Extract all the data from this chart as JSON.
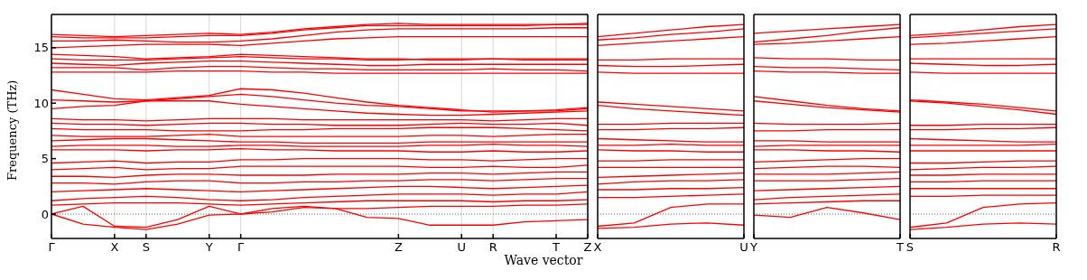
{
  "chart_data": [
    {
      "type": "line",
      "ylabel": "Frequency (THz)",
      "xlabel": "Wave vector",
      "categories": [
        "Γ",
        null,
        "X",
        "S",
        null,
        "Y",
        "Γ",
        null,
        null,
        null,
        null,
        "Z",
        null,
        "U",
        "R",
        null,
        "T",
        "Z"
      ],
      "ylim": [
        -2.2,
        18
      ],
      "yticks": [
        0,
        5,
        10,
        15
      ],
      "grid": "x",
      "ref_lines": [
        {
          "axis": "y",
          "value": 0,
          "color": "#000000",
          "line_style": "dotted"
        }
      ],
      "series": [
        {
          "color": "#ff0000",
          "values": [
            0,
            -0.9,
            -1.2,
            -1.4,
            -0.9,
            -0.1,
            0,
            0.5,
            0.7,
            0.5,
            -0.3,
            -0.4,
            -1.0,
            -1.0,
            -1.0,
            -0.7,
            -0.6,
            -0.5
          ]
        },
        {
          "color": "#ff0000",
          "values": [
            0,
            0.7,
            -1.1,
            -1.2,
            -0.5,
            0.7,
            0,
            0.2,
            0.6,
            0.5,
            0.5,
            0.6,
            0.7,
            0.7,
            0.7,
            0.8,
            0.8,
            0.9
          ]
        },
        {
          "color": "#ff0000",
          "values": [
            0.8,
            0.9,
            1.0,
            1.0,
            1.0,
            0.9,
            0.8,
            0.9,
            1.0,
            1.1,
            1.2,
            1.2,
            1.2,
            1.2,
            1.1,
            1.2,
            1.2,
            1.3
          ]
        },
        {
          "color": "#ff0000",
          "values": [
            1.2,
            1.4,
            1.5,
            1.6,
            1.5,
            1.3,
            1.2,
            1.3,
            1.5,
            1.6,
            1.7,
            1.8,
            1.8,
            1.8,
            1.7,
            1.8,
            1.8,
            2.0
          ]
        },
        {
          "color": "#ff0000",
          "values": [
            2.0,
            2.1,
            2.2,
            2.3,
            2.2,
            2.1,
            2.0,
            2.1,
            2.2,
            2.3,
            2.4,
            2.5,
            2.5,
            2.4,
            2.3,
            2.4,
            2.5,
            2.6
          ]
        },
        {
          "color": "#ff0000",
          "values": [
            2.8,
            2.8,
            2.7,
            2.9,
            3.0,
            3.0,
            2.8,
            2.8,
            2.9,
            2.9,
            3.0,
            3.0,
            3.1,
            3.1,
            3.0,
            3.1,
            3.2,
            3.2
          ]
        },
        {
          "color": "#ff0000",
          "values": [
            3.4,
            3.4,
            3.3,
            3.5,
            3.6,
            3.6,
            3.5,
            3.5,
            3.5,
            3.6,
            3.6,
            3.6,
            3.7,
            3.7,
            3.6,
            3.7,
            3.8,
            3.8
          ]
        },
        {
          "color": "#ff0000",
          "values": [
            4.0,
            4.1,
            4.2,
            4.0,
            4.1,
            4.1,
            4.3,
            4.3,
            4.3,
            4.3,
            4.3,
            4.3,
            4.2,
            4.2,
            4.3,
            4.2,
            4.2,
            4.4
          ]
        },
        {
          "color": "#ff0000",
          "values": [
            4.6,
            4.7,
            4.8,
            4.6,
            4.7,
            4.7,
            4.9,
            4.9,
            5.0,
            5.0,
            5.0,
            5.0,
            4.9,
            4.9,
            4.8,
            4.9,
            5.0,
            5.0
          ]
        },
        {
          "color": "#ff0000",
          "values": [
            5.8,
            5.8,
            5.8,
            5.7,
            5.8,
            5.8,
            5.9,
            5.8,
            5.8,
            5.7,
            5.7,
            5.7,
            5.6,
            5.6,
            5.7,
            5.6,
            5.6,
            5.7
          ]
        },
        {
          "color": "#ff0000",
          "values": [
            6.1,
            6.2,
            6.2,
            6.2,
            6.1,
            6.1,
            6.2,
            6.2,
            6.1,
            6.1,
            6.1,
            6.1,
            6.2,
            6.2,
            6.3,
            6.2,
            6.2,
            6.1
          ]
        },
        {
          "color": "#ff0000",
          "values": [
            6.6,
            6.7,
            6.8,
            6.8,
            6.7,
            6.6,
            6.5,
            6.5,
            6.4,
            6.4,
            6.4,
            6.4,
            6.5,
            6.5,
            6.5,
            6.5,
            6.5,
            6.5
          ]
        },
        {
          "color": "#ff0000",
          "values": [
            7.1,
            7.0,
            7.0,
            7.0,
            7.1,
            7.2,
            7.0,
            7.0,
            7.0,
            7.0,
            7.0,
            7.0,
            7.1,
            7.1,
            7.0,
            7.1,
            7.2,
            7.2
          ]
        },
        {
          "color": "#ff0000",
          "values": [
            7.7,
            7.6,
            7.6,
            7.6,
            7.5,
            7.5,
            7.5,
            7.6,
            7.6,
            7.7,
            7.7,
            7.7,
            7.8,
            7.8,
            7.8,
            7.7,
            7.6,
            7.5
          ]
        },
        {
          "color": "#ff0000",
          "values": [
            8.2,
            8.1,
            8.1,
            8.0,
            8.1,
            8.2,
            8.2,
            8.1,
            8.1,
            8.0,
            8.0,
            8.0,
            8.1,
            8.2,
            8.1,
            8.1,
            8.2,
            8.0
          ]
        },
        {
          "color": "#ff0000",
          "values": [
            8.6,
            8.5,
            8.5,
            8.4,
            8.5,
            8.6,
            8.6,
            8.6,
            8.5,
            8.5,
            8.5,
            8.5,
            8.5,
            8.5,
            8.4,
            8.5,
            8.6,
            8.6
          ]
        },
        {
          "color": "#ff0000",
          "values": [
            9.5,
            9.7,
            9.8,
            10.2,
            10.2,
            10.2,
            9.9,
            9.7,
            9.5,
            9.3,
            9.1,
            9.0,
            8.9,
            8.9,
            9.0,
            9.1,
            9.2,
            9.3
          ]
        },
        {
          "color": "#ff0000",
          "values": [
            10.3,
            10.2,
            10.1,
            10.2,
            10.4,
            10.6,
            10.8,
            10.6,
            10.3,
            10.0,
            9.8,
            9.7,
            9.5,
            9.3,
            9.3,
            9.3,
            9.3,
            9.5
          ]
        },
        {
          "color": "#ff0000",
          "values": [
            11.2,
            10.8,
            10.4,
            10.3,
            10.5,
            10.7,
            11.3,
            11.2,
            10.9,
            10.5,
            10.1,
            9.8,
            9.6,
            9.4,
            9.2,
            9.3,
            9.4,
            9.6
          ]
        },
        {
          "color": "#ff0000",
          "values": [
            12.8,
            12.8,
            12.8,
            12.8,
            12.9,
            12.9,
            12.9,
            12.8,
            12.8,
            12.7,
            12.7,
            12.7,
            12.7,
            12.7,
            12.7,
            12.7,
            12.7,
            12.7
          ]
        },
        {
          "color": "#ff0000",
          "values": [
            13.2,
            13.2,
            13.2,
            13.0,
            13.2,
            13.3,
            13.3,
            13.2,
            13.1,
            13.1,
            13.0,
            13.0,
            13.0,
            13.0,
            13.1,
            13.0,
            13.0,
            12.9
          ]
        },
        {
          "color": "#ff0000",
          "values": [
            13.6,
            13.5,
            13.4,
            13.6,
            13.7,
            13.8,
            13.8,
            13.7,
            13.6,
            13.5,
            13.4,
            13.4,
            13.5,
            13.5,
            13.5,
            13.5,
            13.5,
            13.5
          ]
        },
        {
          "color": "#ff0000",
          "values": [
            14.0,
            13.9,
            13.9,
            13.9,
            14.0,
            14.1,
            14.2,
            14.1,
            14.0,
            14.0,
            13.9,
            13.9,
            14.0,
            14.0,
            14.0,
            13.9,
            13.9,
            13.9
          ]
        },
        {
          "color": "#ff0000",
          "values": [
            14.4,
            14.3,
            14.2,
            14.0,
            14.1,
            14.2,
            14.4,
            14.3,
            14.2,
            14.1,
            14.0,
            14.0,
            13.9,
            13.9,
            14.0,
            14.0,
            14.0,
            14.0
          ]
        },
        {
          "color": "#ff0000",
          "values": [
            15.0,
            15.1,
            15.2,
            15.3,
            15.3,
            15.3,
            15.2,
            15.4,
            15.6,
            15.8,
            15.9,
            16.0,
            16.0,
            16.0,
            16.0,
            16.0,
            16.0,
            16.0
          ]
        },
        {
          "color": "#ff0000",
          "values": [
            15.6,
            15.6,
            15.7,
            15.6,
            15.5,
            15.5,
            15.6,
            15.8,
            16.1,
            16.4,
            16.6,
            16.7,
            16.7,
            16.7,
            16.7,
            16.7,
            16.8,
            16.8
          ]
        },
        {
          "color": "#ff0000",
          "values": [
            16.0,
            15.9,
            15.9,
            15.9,
            16.0,
            16.1,
            16.1,
            16.3,
            16.6,
            16.8,
            17.0,
            17.0,
            17.0,
            17.0,
            17.0,
            17.0,
            17.1,
            17.1
          ]
        },
        {
          "color": "#ff0000",
          "values": [
            16.2,
            16.1,
            16.0,
            16.1,
            16.2,
            16.3,
            16.2,
            16.4,
            16.7,
            16.9,
            17.1,
            17.2,
            17.1,
            17.1,
            17.1,
            17.1,
            17.1,
            17.2
          ]
        }
      ]
    },
    {
      "type": "line",
      "categories": [
        "X",
        null,
        null,
        null,
        "U"
      ],
      "ylim": [
        -2.2,
        18
      ],
      "yticks": [
        0,
        5,
        10,
        15
      ],
      "tick_labels": "x",
      "ref_lines": [
        {
          "axis": "y",
          "value": 0,
          "color": "#000000",
          "line_style": "dotted"
        }
      ],
      "series": [
        {
          "color": "#ff0000",
          "values": [
            -1.3,
            -1.2,
            -0.9,
            -0.8,
            -1.0
          ]
        },
        {
          "color": "#ff0000",
          "values": [
            -1.1,
            -0.8,
            0.6,
            0.9,
            0.9
          ]
        },
        {
          "color": "#ff0000",
          "values": [
            1.5,
            1.5,
            1.6,
            1.7,
            1.8
          ]
        },
        {
          "color": "#ff0000",
          "values": [
            2.2,
            2.2,
            2.3,
            2.3,
            2.4
          ]
        },
        {
          "color": "#ff0000",
          "values": [
            2.7,
            2.9,
            3.0,
            3.0,
            3.1
          ]
        },
        {
          "color": "#ff0000",
          "values": [
            3.3,
            3.4,
            3.5,
            3.6,
            3.7
          ]
        },
        {
          "color": "#ff0000",
          "values": [
            4.2,
            4.2,
            4.2,
            4.2,
            4.2
          ]
        },
        {
          "color": "#ff0000",
          "values": [
            4.8,
            4.8,
            4.9,
            4.9,
            4.9
          ]
        },
        {
          "color": "#ff0000",
          "values": [
            5.8,
            5.7,
            5.7,
            5.6,
            5.6
          ]
        },
        {
          "color": "#ff0000",
          "values": [
            6.2,
            6.2,
            6.3,
            6.2,
            6.2
          ]
        },
        {
          "color": "#ff0000",
          "values": [
            6.8,
            6.7,
            6.6,
            6.5,
            6.5
          ]
        },
        {
          "color": "#ff0000",
          "values": [
            7.6,
            7.6,
            7.7,
            7.7,
            7.8
          ]
        },
        {
          "color": "#ff0000",
          "values": [
            8.1,
            8.1,
            8.2,
            8.2,
            8.2
          ]
        },
        {
          "color": "#ff0000",
          "values": [
            9.8,
            9.5,
            9.3,
            9.1,
            8.9
          ]
        },
        {
          "color": "#ff0000",
          "values": [
            10.1,
            9.9,
            9.7,
            9.5,
            9.3
          ]
        },
        {
          "color": "#ff0000",
          "values": [
            12.8,
            12.7,
            12.7,
            12.7,
            12.7
          ]
        },
        {
          "color": "#ff0000",
          "values": [
            13.4,
            13.3,
            13.3,
            13.4,
            13.5
          ]
        },
        {
          "color": "#ff0000",
          "values": [
            13.9,
            13.9,
            14.0,
            14.0,
            14.0
          ]
        },
        {
          "color": "#ff0000",
          "values": [
            15.2,
            15.4,
            15.6,
            15.8,
            16.0
          ]
        },
        {
          "color": "#ff0000",
          "values": [
            15.7,
            15.9,
            16.2,
            16.4,
            16.7
          ]
        },
        {
          "color": "#ff0000",
          "values": [
            16.0,
            16.3,
            16.6,
            16.9,
            17.1
          ]
        }
      ]
    },
    {
      "type": "line",
      "categories": [
        "Y",
        null,
        null,
        null,
        "T"
      ],
      "ylim": [
        -2.2,
        18
      ],
      "yticks": [
        0,
        5,
        10,
        15
      ],
      "tick_labels": "x",
      "ref_lines": [
        {
          "axis": "y",
          "value": 0,
          "color": "#000000",
          "line_style": "dotted"
        }
      ],
      "series": [
        {
          "color": "#ff0000",
          "values": [
            -0.1,
            -0.3,
            0.6,
            0.1,
            -0.5
          ]
        },
        {
          "color": "#ff0000",
          "values": [
            0.9,
            1.0,
            1.1,
            1.2,
            1.2
          ]
        },
        {
          "color": "#ff0000",
          "values": [
            1.3,
            1.5,
            1.6,
            1.7,
            1.8
          ]
        },
        {
          "color": "#ff0000",
          "values": [
            2.1,
            2.2,
            2.3,
            2.4,
            2.5
          ]
        },
        {
          "color": "#ff0000",
          "values": [
            3.0,
            3.0,
            3.0,
            3.1,
            3.2
          ]
        },
        {
          "color": "#ff0000",
          "values": [
            3.6,
            3.6,
            3.6,
            3.7,
            3.8
          ]
        },
        {
          "color": "#ff0000",
          "values": [
            4.1,
            4.2,
            4.3,
            4.3,
            4.2
          ]
        },
        {
          "color": "#ff0000",
          "values": [
            4.7,
            4.8,
            4.9,
            5.0,
            5.0
          ]
        },
        {
          "color": "#ff0000",
          "values": [
            5.8,
            5.8,
            5.7,
            5.7,
            5.6
          ]
        },
        {
          "color": "#ff0000",
          "values": [
            6.1,
            6.2,
            6.2,
            6.2,
            6.2
          ]
        },
        {
          "color": "#ff0000",
          "values": [
            6.6,
            6.6,
            6.5,
            6.5,
            6.5
          ]
        },
        {
          "color": "#ff0000",
          "values": [
            7.5,
            7.5,
            7.6,
            7.6,
            7.6
          ]
        },
        {
          "color": "#ff0000",
          "values": [
            8.2,
            8.1,
            8.1,
            8.1,
            8.2
          ]
        },
        {
          "color": "#ff0000",
          "values": [
            10.2,
            9.9,
            9.6,
            9.4,
            9.2
          ]
        },
        {
          "color": "#ff0000",
          "values": [
            10.6,
            10.2,
            9.8,
            9.5,
            9.3
          ]
        },
        {
          "color": "#ff0000",
          "values": [
            12.9,
            12.8,
            12.8,
            12.7,
            12.7
          ]
        },
        {
          "color": "#ff0000",
          "values": [
            13.3,
            13.2,
            13.2,
            13.1,
            13.0
          ]
        },
        {
          "color": "#ff0000",
          "values": [
            14.1,
            14.0,
            14.0,
            13.9,
            13.9
          ]
        },
        {
          "color": "#ff0000",
          "values": [
            15.3,
            15.4,
            15.6,
            15.8,
            16.0
          ]
        },
        {
          "color": "#ff0000",
          "values": [
            15.5,
            15.8,
            16.1,
            16.5,
            16.8
          ]
        },
        {
          "color": "#ff0000",
          "values": [
            16.3,
            16.5,
            16.7,
            16.9,
            17.1
          ]
        }
      ]
    },
    {
      "type": "line",
      "categories": [
        "S",
        null,
        null,
        null,
        "R"
      ],
      "ylim": [
        -2.2,
        18
      ],
      "yticks": [
        0,
        5,
        10,
        15
      ],
      "tick_labels": "x",
      "ref_lines": [
        {
          "axis": "y",
          "value": 0,
          "color": "#000000",
          "line_style": "dotted"
        }
      ],
      "series": [
        {
          "color": "#ff0000",
          "values": [
            -1.4,
            -1.2,
            -0.9,
            -0.8,
            -0.9
          ]
        },
        {
          "color": "#ff0000",
          "values": [
            -1.2,
            -0.8,
            0.6,
            0.9,
            1.0
          ]
        },
        {
          "color": "#ff0000",
          "values": [
            1.6,
            1.6,
            1.7,
            1.7,
            1.7
          ]
        },
        {
          "color": "#ff0000",
          "values": [
            2.3,
            2.3,
            2.3,
            2.3,
            2.3
          ]
        },
        {
          "color": "#ff0000",
          "values": [
            2.9,
            2.9,
            3.0,
            3.0,
            3.0
          ]
        },
        {
          "color": "#ff0000",
          "values": [
            3.5,
            3.5,
            3.6,
            3.6,
            3.6
          ]
        },
        {
          "color": "#ff0000",
          "values": [
            4.0,
            4.1,
            4.2,
            4.2,
            4.3
          ]
        },
        {
          "color": "#ff0000",
          "values": [
            4.6,
            4.6,
            4.7,
            4.8,
            4.8
          ]
        },
        {
          "color": "#ff0000",
          "values": [
            5.7,
            5.7,
            5.7,
            5.7,
            5.7
          ]
        },
        {
          "color": "#ff0000",
          "values": [
            6.2,
            6.2,
            6.2,
            6.2,
            6.3
          ]
        },
        {
          "color": "#ff0000",
          "values": [
            6.8,
            6.7,
            6.6,
            6.5,
            6.5
          ]
        },
        {
          "color": "#ff0000",
          "values": [
            7.6,
            7.6,
            7.7,
            7.7,
            7.8
          ]
        },
        {
          "color": "#ff0000",
          "values": [
            8.0,
            8.0,
            8.1,
            8.1,
            8.1
          ]
        },
        {
          "color": "#ff0000",
          "values": [
            10.2,
            10.0,
            9.7,
            9.4,
            9.0
          ]
        },
        {
          "color": "#ff0000",
          "values": [
            10.3,
            10.1,
            9.9,
            9.6,
            9.3
          ]
        },
        {
          "color": "#ff0000",
          "values": [
            12.8,
            12.7,
            12.7,
            12.7,
            12.7
          ]
        },
        {
          "color": "#ff0000",
          "values": [
            13.6,
            13.5,
            13.4,
            13.4,
            13.5
          ]
        },
        {
          "color": "#ff0000",
          "values": [
            14.0,
            14.0,
            14.0,
            14.0,
            14.0
          ]
        },
        {
          "color": "#ff0000",
          "values": [
            15.3,
            15.4,
            15.6,
            15.8,
            16.0
          ]
        },
        {
          "color": "#ff0000",
          "values": [
            15.9,
            16.1,
            16.3,
            16.5,
            16.7
          ]
        },
        {
          "color": "#ff0000",
          "values": [
            16.1,
            16.3,
            16.6,
            16.9,
            17.1
          ]
        }
      ]
    }
  ]
}
